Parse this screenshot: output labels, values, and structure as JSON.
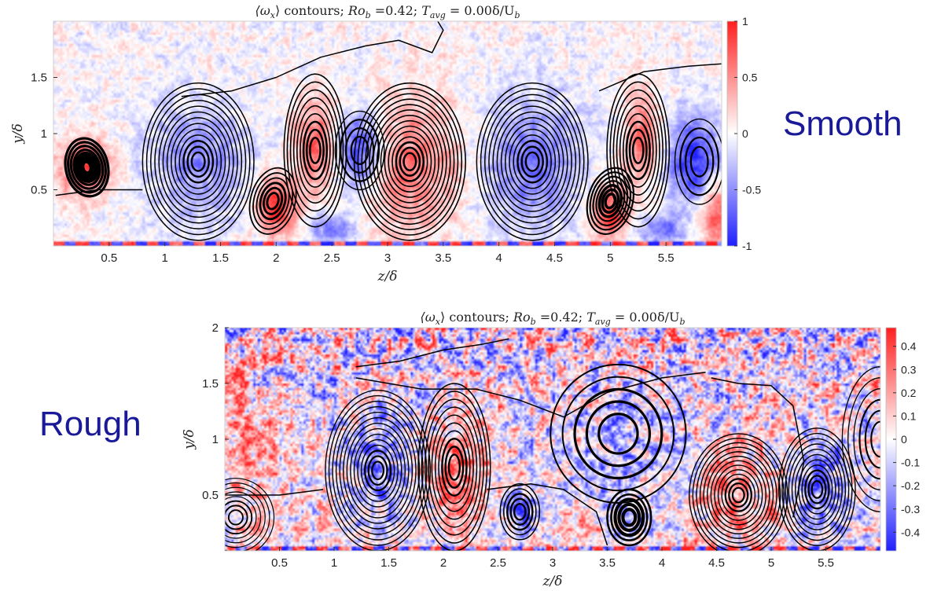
{
  "labels": {
    "smooth": "Smooth",
    "rough": "Rough"
  },
  "chart_data": [
    {
      "type": "heatmap",
      "panel": "smooth",
      "title_parts": {
        "quantity": "⟨ω",
        "sub": "x",
        "close": "⟩",
        "rest": " contours; ",
        "ro": "Ro",
        "ro_sub": "b",
        "ro_val": " =0.42; ",
        "t": "T",
        "t_sub": "avg",
        "t_val": " = 0.00δ/U",
        "u_sub": "b"
      },
      "xlabel": "z/δ",
      "ylabel": "y/δ",
      "xlim": [
        0,
        6
      ],
      "ylim": [
        0,
        2
      ],
      "xticks": [
        0.5,
        1,
        1.5,
        2,
        2.5,
        3,
        3.5,
        4,
        4.5,
        5,
        5.5
      ],
      "yticks": [
        0.5,
        1,
        1.5
      ],
      "colorbar": {
        "range": [
          -1,
          1
        ],
        "ticks": [
          -1,
          -0.5,
          0,
          0.5,
          1
        ],
        "colors": [
          "#1f1fff",
          "#ffffff",
          "#ff1f1f"
        ]
      },
      "noise_amp": 0.28,
      "noise_y_boost": 0.2,
      "vortices": [
        {
          "z": 0.3,
          "y": 0.7,
          "strength": 0.9,
          "rz": 0.22,
          "ry": 0.25
        },
        {
          "z": 1.3,
          "y": 0.75,
          "strength": -0.5,
          "rz": 0.45,
          "ry": 0.55
        },
        {
          "z": 2.0,
          "y": 0.35,
          "strength": 0.95,
          "rz": 0.18,
          "ry": 0.25
        },
        {
          "z": 2.35,
          "y": 0.9,
          "strength": 0.7,
          "rz": 0.18,
          "ry": 0.4
        },
        {
          "z": 2.75,
          "y": 0.85,
          "strength": -0.9,
          "rz": 0.22,
          "ry": 0.35
        },
        {
          "z": 2.5,
          "y": 0.15,
          "strength": -0.6,
          "rz": 0.2,
          "ry": 0.15
        },
        {
          "z": 3.2,
          "y": 0.7,
          "strength": 0.6,
          "rz": 0.45,
          "ry": 0.6
        },
        {
          "z": 4.3,
          "y": 0.75,
          "strength": -0.6,
          "rz": 0.45,
          "ry": 0.6
        },
        {
          "z": 5.0,
          "y": 0.3,
          "strength": 0.9,
          "rz": 0.18,
          "ry": 0.25
        },
        {
          "z": 5.3,
          "y": 0.95,
          "strength": 0.7,
          "rz": 0.15,
          "ry": 0.4
        },
        {
          "z": 5.75,
          "y": 0.75,
          "strength": -0.9,
          "rz": 0.25,
          "ry": 0.4
        },
        {
          "z": 5.45,
          "y": 0.15,
          "strength": -0.6,
          "rz": 0.2,
          "ry": 0.15
        },
        {
          "z": 5.95,
          "y": 0.3,
          "strength": 0.8,
          "rz": 0.15,
          "ry": 0.3
        }
      ],
      "contours": [
        {
          "z": 0.3,
          "y": 0.7,
          "rz": 0.19,
          "ry": 0.26,
          "n": 7,
          "rot": -12,
          "thick": 3.2
        },
        {
          "z": 1.3,
          "y": 0.75,
          "rz": 0.5,
          "ry": 0.7,
          "n": 13,
          "rot": 0,
          "thick": 1.5
        },
        {
          "z": 1.97,
          "y": 0.4,
          "rz": 0.2,
          "ry": 0.3,
          "n": 6,
          "rot": 15,
          "thick": 1.8
        },
        {
          "z": 2.35,
          "y": 0.85,
          "rz": 0.28,
          "ry": 0.68,
          "n": 9,
          "rot": 0,
          "thick": 1.6
        },
        {
          "z": 2.75,
          "y": 0.85,
          "rz": 0.22,
          "ry": 0.35,
          "n": 4,
          "rot": 0,
          "thick": 1.4
        },
        {
          "z": 3.2,
          "y": 0.75,
          "rz": 0.5,
          "ry": 0.7,
          "n": 14,
          "rot": 0,
          "thick": 1.6
        },
        {
          "z": 4.3,
          "y": 0.75,
          "rz": 0.5,
          "ry": 0.7,
          "n": 13,
          "rot": 0,
          "thick": 1.5
        },
        {
          "z": 5.0,
          "y": 0.4,
          "rz": 0.2,
          "ry": 0.3,
          "n": 7,
          "rot": 15,
          "thick": 2.2
        },
        {
          "z": 5.25,
          "y": 0.85,
          "rz": 0.28,
          "ry": 0.68,
          "n": 9,
          "rot": 0,
          "thick": 1.6
        },
        {
          "z": 5.8,
          "y": 0.75,
          "rz": 0.22,
          "ry": 0.38,
          "n": 4,
          "rot": 0,
          "thick": 1.4
        }
      ],
      "streamlines": [
        [
          [
            1.15,
            1.33
          ],
          [
            1.6,
            1.38
          ],
          [
            2.0,
            1.5
          ],
          [
            2.4,
            1.68
          ],
          [
            2.8,
            1.78
          ],
          [
            3.1,
            1.83
          ],
          [
            3.4,
            1.72
          ],
          [
            3.5,
            1.92
          ],
          [
            3.45,
            2.0
          ]
        ],
        [
          [
            4.9,
            1.38
          ],
          [
            5.3,
            1.55
          ],
          [
            5.7,
            1.6
          ],
          [
            6.0,
            1.62
          ]
        ],
        [
          [
            0.02,
            0.45
          ],
          [
            0.4,
            0.5
          ],
          [
            0.8,
            0.5
          ]
        ]
      ]
    },
    {
      "type": "heatmap",
      "panel": "rough",
      "title_parts": {
        "quantity": "⟨ω",
        "sub": "x",
        "close": "⟩",
        "rest": " contours; ",
        "ro": "Ro",
        "ro_sub": "b",
        "ro_val": " =0.42; ",
        "t": "T",
        "t_sub": "avg",
        "t_val": " = 0.00δ/U",
        "u_sub": "b"
      },
      "xlabel": "z/δ",
      "ylabel": "y/δ",
      "xlim": [
        0,
        6
      ],
      "ylim": [
        0,
        2
      ],
      "xticks": [
        0.5,
        1,
        1.5,
        2,
        2.5,
        3,
        3.5,
        4,
        4.5,
        5,
        5.5
      ],
      "yticks": [
        0.5,
        1,
        1.5,
        2
      ],
      "colorbar": {
        "range": [
          -0.48,
          0.48
        ],
        "ticks": [
          -0.4,
          -0.3,
          -0.2,
          -0.1,
          0,
          0.1,
          0.2,
          0.3,
          0.4
        ],
        "colors": [
          "#1f1fff",
          "#ffffff",
          "#ff1f1f"
        ]
      },
      "noise_amp": 0.9,
      "noise_y_boost": 0.8,
      "vortices": [
        {
          "z": 0.2,
          "y": 1.0,
          "strength": 0.45,
          "rz": 0.35,
          "ry": 0.6
        },
        {
          "z": 1.4,
          "y": 0.75,
          "strength": -0.6,
          "rz": 0.3,
          "ry": 0.45
        },
        {
          "z": 2.15,
          "y": 0.7,
          "strength": 0.6,
          "rz": 0.3,
          "ry": 0.5
        },
        {
          "z": 2.7,
          "y": 0.35,
          "strength": -0.55,
          "rz": 0.15,
          "ry": 0.2
        },
        {
          "z": 3.6,
          "y": 1.0,
          "strength": -0.35,
          "rz": 0.55,
          "ry": 0.55
        },
        {
          "z": 3.65,
          "y": 0.25,
          "strength": -0.5,
          "rz": 0.15,
          "ry": 0.15
        },
        {
          "z": 4.7,
          "y": 0.5,
          "strength": 0.55,
          "rz": 0.4,
          "ry": 0.45
        },
        {
          "z": 5.45,
          "y": 0.55,
          "strength": -0.6,
          "rz": 0.3,
          "ry": 0.45
        },
        {
          "z": 3.3,
          "y": 0.2,
          "strength": 0.45,
          "rz": 0.3,
          "ry": 0.15
        }
      ],
      "contours": [
        {
          "z": 1.4,
          "y": 0.72,
          "rz": 0.48,
          "ry": 0.72,
          "n": 14,
          "rot": 0,
          "thick": 1.4
        },
        {
          "z": 2.1,
          "y": 0.75,
          "rz": 0.33,
          "ry": 0.75,
          "n": 10,
          "rot": 0,
          "thick": 1.5
        },
        {
          "z": 2.7,
          "y": 0.35,
          "rz": 0.18,
          "ry": 0.25,
          "n": 5,
          "rot": 0,
          "thick": 1.5
        },
        {
          "z": 3.6,
          "y": 1.05,
          "rz": 0.62,
          "ry": 0.62,
          "n": 5,
          "rot": 0,
          "thick": 2.0
        },
        {
          "z": 3.7,
          "y": 0.3,
          "rz": 0.2,
          "ry": 0.25,
          "n": 5,
          "rot": 0,
          "thick": 2.6
        },
        {
          "z": 4.7,
          "y": 0.5,
          "rz": 0.45,
          "ry": 0.55,
          "n": 13,
          "rot": 0,
          "thick": 1.4
        },
        {
          "z": 5.42,
          "y": 0.55,
          "rz": 0.35,
          "ry": 0.55,
          "n": 11,
          "rot": 0,
          "thick": 1.4
        },
        {
          "z": 0.1,
          "y": 0.3,
          "rz": 0.35,
          "ry": 0.35,
          "n": 8,
          "rot": 0,
          "thick": 1.2
        },
        {
          "z": 6.0,
          "y": 1.0,
          "rz": 0.35,
          "ry": 0.65,
          "n": 6,
          "rot": 0,
          "thick": 1.3
        }
      ],
      "streamlines": [
        [
          [
            1.2,
            1.65
          ],
          [
            1.6,
            1.7
          ],
          [
            2.0,
            1.8
          ],
          [
            2.35,
            1.85
          ],
          [
            2.6,
            1.9
          ]
        ],
        [
          [
            1.2,
            1.55
          ],
          [
            1.5,
            1.5
          ],
          [
            1.8,
            1.45
          ],
          [
            2.3,
            1.45
          ],
          [
            2.7,
            1.35
          ],
          [
            3.1,
            1.2
          ],
          [
            3.5,
            1.42
          ],
          [
            4.0,
            1.55
          ],
          [
            4.4,
            1.6
          ]
        ],
        [
          [
            4.45,
            1.55
          ],
          [
            4.7,
            1.5
          ],
          [
            5.0,
            1.48
          ],
          [
            5.2,
            1.3
          ],
          [
            5.3,
            0.8
          ],
          [
            5.2,
            0.3
          ]
        ],
        [
          [
            2.4,
            0.55
          ],
          [
            2.8,
            0.6
          ],
          [
            3.1,
            0.55
          ],
          [
            3.4,
            0.35
          ],
          [
            3.5,
            0.05
          ]
        ],
        [
          [
            0.0,
            0.5
          ],
          [
            0.5,
            0.5
          ],
          [
            0.9,
            0.55
          ]
        ]
      ]
    }
  ]
}
